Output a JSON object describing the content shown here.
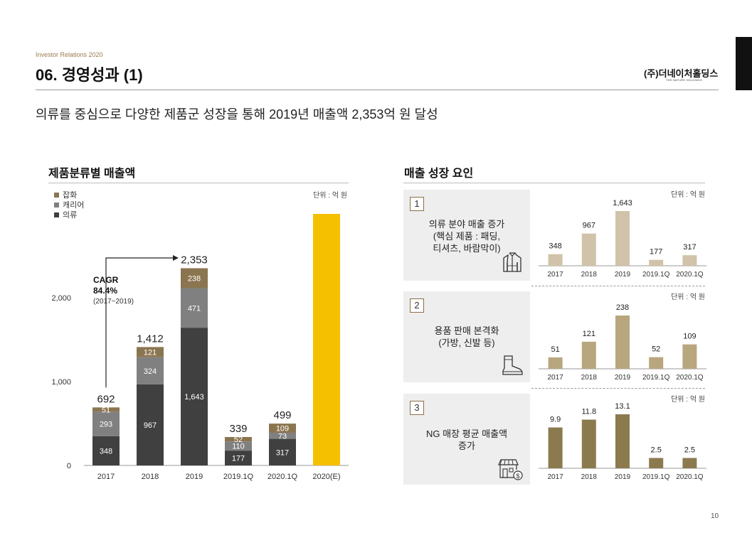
{
  "header": {
    "ir_label": "Investor Relations 2020",
    "title": "06. 경영성과 (1)",
    "company": "(주)더네이처홀딩스",
    "company_en": "THE NATURE HOLDINGS",
    "page_number": "10"
  },
  "subtitle": "의류를 중심으로 다양한 제품군 성장을 통해 2019년 매출액 2,353억 원 달성",
  "left_section": {
    "title": "제품분류별 매출액"
  },
  "right_section": {
    "title": "매출 성장 요인",
    "factors": [
      {
        "number": "1",
        "text": "의류 분야 매출 증가\n(핵심 제품 : 패딩,\n티셔츠, 바람막이)",
        "icon": "jacket-icon"
      },
      {
        "number": "2",
        "text": "용품 판매 본격화\n(가방, 신발 등)",
        "icon": "boot-icon"
      },
      {
        "number": "3",
        "text": "NG 매장 평균 매출액\n증가",
        "icon": "store-icon"
      }
    ]
  },
  "chart_data": [
    {
      "type": "bar",
      "stacked": true,
      "categories": [
        "2017",
        "2018",
        "2019",
        "2019.1Q",
        "2020.1Q",
        "2020(E)"
      ],
      "series": [
        {
          "name": "의류",
          "color": "#404040",
          "values": [
            348,
            967,
            1643,
            177,
            317,
            null
          ]
        },
        {
          "name": "캐리어",
          "color": "#808080",
          "values": [
            293,
            324,
            471,
            110,
            73,
            null
          ]
        },
        {
          "name": "잡화",
          "color": "#8b7550",
          "values": [
            51,
            121,
            238,
            52,
            109,
            null
          ]
        }
      ],
      "totals": [
        "692",
        "1,412",
        "2,353",
        "339",
        "499",
        ""
      ],
      "labels": [
        [
          "348",
          "967",
          "1,643",
          "177",
          "317",
          ""
        ],
        [
          "293",
          "324",
          "471",
          "110",
          "73",
          ""
        ],
        [
          "51",
          "121",
          "238",
          "52",
          "109",
          ""
        ]
      ],
      "highlight": {
        "category": "2020(E)",
        "color": "#f5c000",
        "value": 3000
      },
      "yticks": [
        "0",
        "1,000",
        "2,000"
      ],
      "ytick_values": [
        0,
        1000,
        2000
      ],
      "ylim": [
        0,
        3000
      ],
      "unit": "단위 : 억 원",
      "legend": {
        "position": "top-left",
        "order": [
          "잡화",
          "캐리어",
          "의류"
        ]
      },
      "annotation": {
        "title": "CAGR",
        "value": "84.4%",
        "range": "(2017~2019)"
      }
    },
    {
      "type": "bar",
      "categories": [
        "2017",
        "2018",
        "2019",
        "2019.1Q",
        "2020.1Q"
      ],
      "values": [
        348,
        967,
        1643,
        177,
        317
      ],
      "labels": [
        "348",
        "967",
        "1,643",
        "177",
        "317"
      ],
      "color": "#d0c3a9",
      "ylim": [
        0,
        1643
      ],
      "unit": "단위 : 억 원"
    },
    {
      "type": "bar",
      "categories": [
        "2017",
        "2018",
        "2019",
        "2019.1Q",
        "2020.1Q"
      ],
      "values": [
        51,
        121,
        238,
        52,
        109
      ],
      "labels": [
        "51",
        "121",
        "238",
        "52",
        "109"
      ],
      "color": "#b8a67f",
      "ylim": [
        0,
        238
      ],
      "unit": "단위 : 억 원"
    },
    {
      "type": "bar",
      "categories": [
        "2017",
        "2018",
        "2019",
        "2019.1Q",
        "2020.1Q"
      ],
      "values": [
        9.9,
        11.8,
        13.1,
        2.5,
        2.5
      ],
      "labels": [
        "9.9",
        "11.8",
        "13.1",
        "2.5",
        "2.5"
      ],
      "color": "#8c7a4f",
      "ylim": [
        0,
        13.1
      ],
      "unit": "단위 : 억 원"
    }
  ]
}
